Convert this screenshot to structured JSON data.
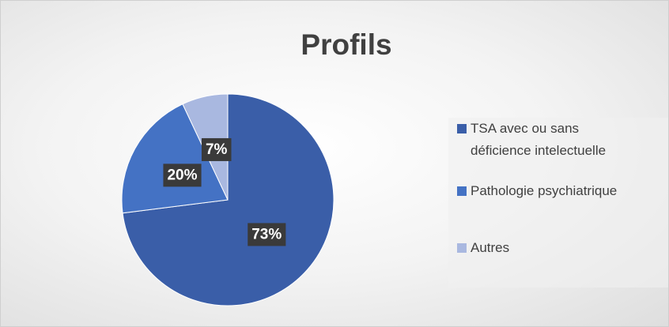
{
  "chart_data": {
    "type": "pie",
    "title": "Profils",
    "categories": [
      "TSA avec ou sans déficience intelectuelle",
      "Pathologie psychiatrique",
      "Autres"
    ],
    "values": [
      73,
      20,
      7
    ],
    "value_labels": [
      "73%",
      "20%",
      "7%"
    ],
    "colors": [
      "#3a5ea8",
      "#4472c4",
      "#a9b8e0"
    ]
  }
}
